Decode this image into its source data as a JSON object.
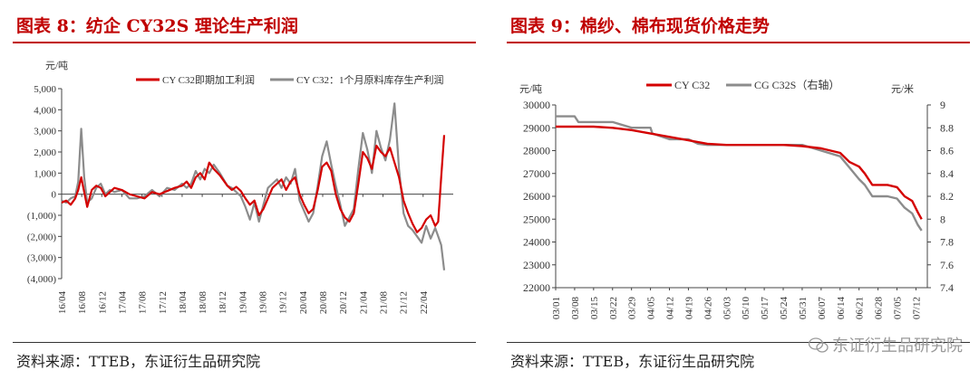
{
  "left": {
    "title": "图表 8：纺企 CY32S 理论生产利润",
    "source": "资料来源：TTEB，东证衍生品研究院",
    "chart_data": {
      "type": "line",
      "unit_label": "元/吨",
      "ylim": [
        -4000,
        5000
      ],
      "yticks": [
        5000,
        4000,
        3000,
        2000,
        1000,
        0,
        -1000,
        -2000,
        -3000,
        -4000
      ],
      "ytick_labels": [
        "5,000",
        "4,000",
        "3,000",
        "2,000",
        "1,000",
        "0",
        "(1,000)",
        "(2,000)",
        "(3,000)",
        "(4,000)"
      ],
      "xtick_labels": [
        "16/04",
        "16/08",
        "16/12",
        "17/04",
        "17/08",
        "17/12",
        "18/04",
        "18/08",
        "18/12",
        "19/04",
        "19/08",
        "19/12",
        "20/04",
        "20/08",
        "20/12",
        "21/04",
        "21/08",
        "21/12",
        "22/04"
      ],
      "xlim": [
        0,
        26
      ],
      "series": [
        {
          "name": "CY C32即期加工利润",
          "color": "#d40000",
          "x": [
            0,
            0.3,
            0.6,
            0.9,
            1.1,
            1.3,
            1.5,
            1.7,
            2.0,
            2.3,
            2.6,
            2.9,
            3.2,
            3.5,
            4.0,
            4.5,
            5.0,
            5.5,
            6.0,
            6.5,
            7.0,
            7.5,
            8.0,
            8.3,
            8.6,
            8.9,
            9.2,
            9.5,
            9.8,
            10.1,
            10.5,
            11.0,
            11.3,
            11.6,
            11.9,
            12.2,
            12.5,
            12.8,
            13.1,
            13.4,
            13.7,
            14.0,
            14.3,
            14.6,
            14.9,
            15.2,
            15.5,
            15.8,
            16.1,
            16.4,
            16.7,
            17.0,
            17.3,
            17.6,
            17.9,
            18.2,
            18.5,
            18.8,
            19.1,
            19.4,
            19.7,
            20.0,
            20.3,
            20.6,
            20.9,
            21.2,
            21.5,
            21.8,
            22.1,
            22.4,
            22.7,
            23.0,
            23.3,
            23.6,
            23.9,
            24.2,
            24.5,
            24.8,
            25.0,
            25.2,
            25.4
          ],
          "values": [
            -400,
            -300,
            -500,
            -200,
            200,
            800,
            100,
            -600,
            200,
            400,
            300,
            -100,
            100,
            300,
            200,
            0,
            -100,
            -200,
            100,
            0,
            150,
            300,
            400,
            600,
            300,
            800,
            1000,
            700,
            1500,
            1200,
            900,
            400,
            200,
            350,
            150,
            -200,
            -500,
            -300,
            -1000,
            -700,
            -200,
            300,
            500,
            700,
            200,
            600,
            800,
            0,
            -500,
            -900,
            -700,
            200,
            1300,
            1500,
            1100,
            0,
            -700,
            -1100,
            -1300,
            -900,
            500,
            2000,
            1700,
            1200,
            2300,
            2000,
            1800,
            2200,
            1500,
            800,
            -300,
            -900,
            -1400,
            -1800,
            -1600,
            -1200,
            -1000,
            -1500,
            -1300,
            800,
            2800
          ]
        },
        {
          "name": "CY C32：1个月原料库存生产利润",
          "color": "#8c8c8c",
          "x": [
            0,
            0.3,
            0.6,
            0.9,
            1.1,
            1.3,
            1.5,
            1.7,
            2.0,
            2.3,
            2.6,
            2.9,
            3.2,
            3.5,
            4.0,
            4.5,
            5.0,
            5.5,
            6.0,
            6.5,
            7.0,
            7.5,
            8.0,
            8.3,
            8.6,
            8.9,
            9.2,
            9.5,
            9.8,
            10.1,
            10.5,
            11.0,
            11.3,
            11.6,
            11.9,
            12.2,
            12.5,
            12.8,
            13.1,
            13.4,
            13.7,
            14.0,
            14.3,
            14.6,
            14.9,
            15.2,
            15.5,
            15.8,
            16.1,
            16.4,
            16.7,
            17.0,
            17.3,
            17.6,
            17.9,
            18.2,
            18.5,
            18.8,
            19.1,
            19.4,
            19.7,
            20.0,
            20.3,
            20.6,
            20.9,
            21.2,
            21.5,
            21.8,
            22.1,
            22.4,
            22.7,
            23.0,
            23.3,
            23.6,
            23.9,
            24.2,
            24.5,
            24.8,
            25.0,
            25.2,
            25.4
          ],
          "values": [
            -300,
            -400,
            -200,
            -100,
            600,
            3100,
            800,
            -400,
            -200,
            300,
            500,
            0,
            200,
            100,
            200,
            -200,
            -200,
            -100,
            200,
            -100,
            300,
            200,
            500,
            300,
            500,
            1100,
            700,
            1200,
            1000,
            1400,
            1000,
            400,
            300,
            100,
            -100,
            -600,
            -1200,
            -400,
            -1300,
            -500,
            300,
            500,
            700,
            300,
            800,
            500,
            1200,
            -300,
            -800,
            -1300,
            -900,
            400,
            1800,
            2500,
            1400,
            400,
            -500,
            -1500,
            -1100,
            -700,
            1200,
            2900,
            2100,
            1000,
            3000,
            2200,
            1600,
            2600,
            4300,
            1200,
            -900,
            -1500,
            -1700,
            -2000,
            -2300,
            -1500,
            -2100,
            -1600,
            -2000,
            -2400,
            -3600
          ]
        }
      ]
    }
  },
  "right": {
    "title": "图表 9：棉纱、棉布现货价格走势",
    "source": "资料来源：TTEB，东证衍生品研究院",
    "watermark": "东证衍生品研究院",
    "chart_data": {
      "type": "line",
      "left_unit_label": "元/吨",
      "right_unit_label": "元/米",
      "ylim": [
        22000,
        30000
      ],
      "yticks": [
        30000,
        29000,
        28000,
        27000,
        26000,
        25000,
        24000,
        23000,
        22000
      ],
      "ytick_labels": [
        "30000",
        "29000",
        "28000",
        "27000",
        "26000",
        "25000",
        "24000",
        "23000",
        "22000"
      ],
      "y2lim": [
        7.4,
        9.0
      ],
      "y2ticks": [
        9.0,
        8.8,
        8.6,
        8.4,
        8.2,
        8.0,
        7.8,
        7.6,
        7.4
      ],
      "y2tick_labels": [
        "9",
        "8.8",
        "8.6",
        "8.4",
        "8.2",
        "8",
        "7.8",
        "7.6",
        "7.4"
      ],
      "xtick_labels": [
        "03/01",
        "03/08",
        "03/15",
        "03/22",
        "03/29",
        "04/05",
        "04/12",
        "04/19",
        "04/26",
        "05/03",
        "05/10",
        "05/17",
        "05/24",
        "05/31",
        "06/07",
        "06/14",
        "06/21",
        "06/28",
        "07/05",
        "07/12"
      ],
      "xlim": [
        0,
        19.6
      ],
      "series": [
        {
          "name": "CY C32",
          "axis": "left",
          "color": "#d40000",
          "x": [
            0,
            1,
            2,
            3,
            4,
            5,
            6,
            7,
            8,
            9,
            10,
            11,
            12,
            13,
            14,
            15,
            15.5,
            16,
            16.3,
            16.7,
            17,
            17.5,
            18,
            18.4,
            18.8,
            19.1,
            19.3
          ],
          "values": [
            29050,
            29050,
            29050,
            29000,
            28900,
            28750,
            28600,
            28450,
            28300,
            28250,
            28250,
            28250,
            28250,
            28200,
            28100,
            27900,
            27500,
            27300,
            27000,
            26500,
            26500,
            26500,
            26400,
            26000,
            25800,
            25300,
            25000
          ]
        },
        {
          "name": "CG C32S（右轴）",
          "axis": "right",
          "color": "#8c8c8c",
          "x": [
            0,
            0.5,
            1,
            1.2,
            2,
            3,
            4,
            4.1,
            5,
            5.1,
            6,
            7,
            7.5,
            8,
            9,
            10,
            11,
            12,
            13,
            14,
            15,
            15.5,
            16,
            16.3,
            16.7,
            17,
            17.5,
            18,
            18.4,
            18.8,
            19.1,
            19.3
          ],
          "values": [
            8.9,
            8.9,
            8.9,
            8.85,
            8.85,
            8.85,
            8.8,
            8.8,
            8.8,
            8.75,
            8.7,
            8.7,
            8.66,
            8.65,
            8.65,
            8.65,
            8.65,
            8.65,
            8.65,
            8.6,
            8.55,
            8.45,
            8.35,
            8.3,
            8.2,
            8.2,
            8.2,
            8.18,
            8.1,
            8.05,
            7.95,
            7.9
          ]
        }
      ]
    }
  }
}
